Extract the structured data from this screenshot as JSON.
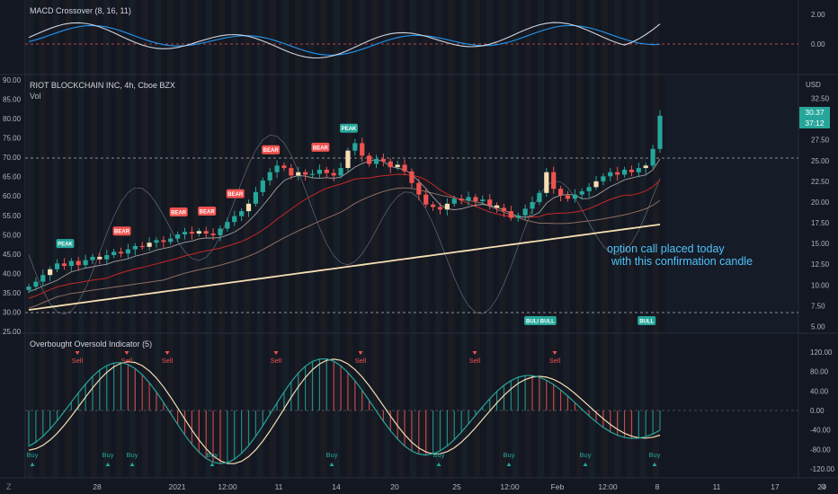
{
  "macd": {
    "title": "MACD Crossover (8, 16, 11)",
    "ticks": [
      "2.00",
      "0.00"
    ],
    "line_color": "#d1d4dc",
    "signal_color": "#2196f3"
  },
  "main": {
    "title": "RIOT BLOCKCHAIN INC, 4h, Cboe BZX",
    "vol_label": "Vol",
    "currency": "USD",
    "left_ticks": [
      "90.00",
      "85.00",
      "80.00",
      "75.00",
      "70.00",
      "65.00",
      "60.00",
      "55.00",
      "50.00",
      "45.00",
      "40.00",
      "35.00",
      "30.00",
      "25.00"
    ],
    "right_ticks": [
      "32.50",
      "27.50",
      "25.00",
      "22.50",
      "20.00",
      "17.50",
      "15.00",
      "12.50",
      "10.00",
      "7.50",
      "5.00"
    ],
    "price_tag": "30.37",
    "time_tag": "37:12",
    "annotation_line1": "option call placed today",
    "annotation_line2": "with this confirmation candle",
    "signals": [
      {
        "text": "PEAK",
        "kind": "peak"
      },
      {
        "text": "BEAR",
        "kind": "bear"
      },
      {
        "text": "BEAR",
        "kind": "bear"
      },
      {
        "text": "BEAR",
        "kind": "bear"
      },
      {
        "text": "BEAR",
        "kind": "bear"
      },
      {
        "text": "BEAR",
        "kind": "bear"
      },
      {
        "text": "BEAR",
        "kind": "bear"
      },
      {
        "text": "PEAK",
        "kind": "peak"
      },
      {
        "text": "BULL",
        "kind": "bull"
      },
      {
        "text": "BULL",
        "kind": "bull"
      },
      {
        "text": "BULL",
        "kind": "bull"
      }
    ]
  },
  "osc": {
    "title": "Overbought Oversold Indicator (5)",
    "ticks": [
      "120.00",
      "80.00",
      "40.00",
      "0.00",
      "-40.00",
      "-80.00",
      "-120.00"
    ],
    "sell_label": "Sell",
    "buy_label": "Buy",
    "sell_count": 7,
    "buy_count": 9
  },
  "xaxis": {
    "labels": [
      "28",
      "2021",
      "12:00",
      "11",
      "14",
      "20",
      "25",
      "12:00",
      "Feb",
      "12:00",
      "8",
      "11",
      "17",
      "24"
    ]
  },
  "colors": {
    "background": "#131722",
    "up": "#26a69a",
    "down": "#ef5350",
    "annotation": "#4fc3f7",
    "ma_slow": "#f5deb3"
  },
  "chart_data": {
    "type": "candlestick",
    "title": "RIOT BLOCKCHAIN INC, 4h, Cboe BZX",
    "right_axis_unit": "USD",
    "right_axis_range": [
      5,
      32.5
    ],
    "left_axis_range": [
      25,
      90
    ],
    "last_price": 30.37,
    "close_series_usd": [
      9.8,
      10.4,
      11.2,
      11.9,
      12.6,
      12.3,
      12.9,
      12.4,
      13.0,
      13.4,
      13.1,
      13.6,
      14.0,
      13.8,
      14.3,
      14.7,
      14.6,
      15.1,
      15.4,
      15.2,
      15.6,
      16.1,
      16.4,
      16.2,
      16.5,
      16.2,
      16.0,
      16.8,
      17.6,
      18.3,
      18.9,
      19.8,
      21.2,
      22.6,
      23.6,
      24.4,
      24.1,
      23.2,
      23.6,
      23.3,
      23.4,
      23.9,
      23.5,
      23.2,
      24.1,
      26.2,
      27.1,
      25.6,
      24.6,
      25.2,
      24.9,
      24.2,
      24.5,
      23.7,
      22.3,
      20.9,
      19.7,
      19.4,
      19.1,
      19.8,
      20.4,
      20.2,
      20.6,
      20.1,
      20.3,
      19.6,
      19.3,
      18.9,
      18.1,
      18.4,
      19.2,
      20.0,
      21.1,
      23.6,
      21.6,
      20.8,
      20.4,
      20.9,
      21.3,
      21.8,
      22.5,
      23.1,
      23.6,
      23.3,
      23.9,
      23.6,
      24.1,
      24.4,
      26.4,
      30.4
    ],
    "macd_range": [
      -1.0,
      2.6
    ],
    "oscillator_range": [
      -120,
      120
    ]
  }
}
